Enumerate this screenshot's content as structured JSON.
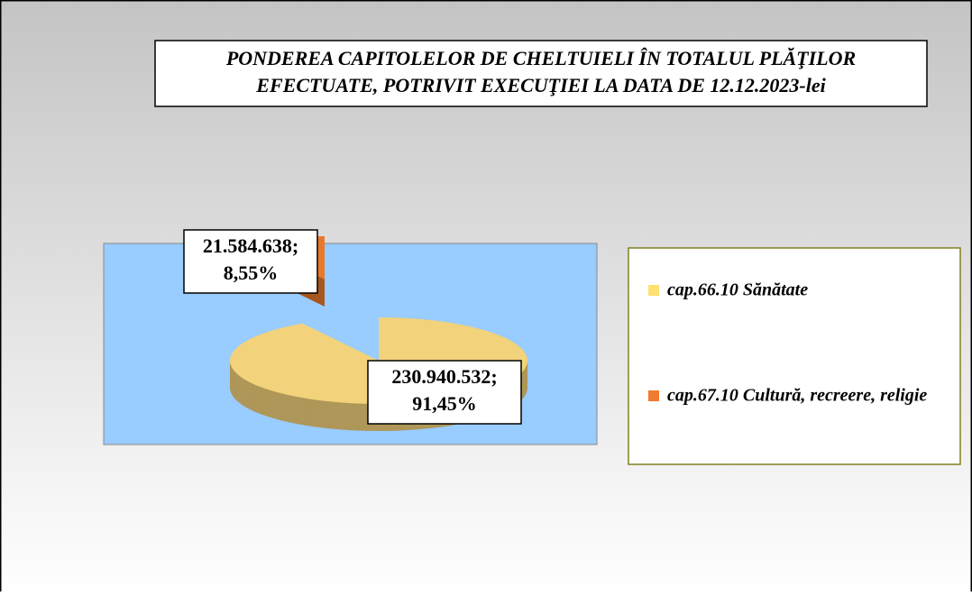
{
  "chart_data": {
    "type": "pie",
    "title": [
      "PONDEREA  CAPITOLELOR DE CHELTUIELI ÎN TOTALUL PLĂŢILOR",
      "EFECTUATE, POTRIVIT EXECUŢIEI  LA DATA DE 12.12.2023-lei"
    ],
    "categories": [
      "cap.66.10 Sănătate",
      "cap.67.10 Cultură, recreere, religie"
    ],
    "values": [
      230940532,
      21584638
    ],
    "value_labels": [
      "230.940.532;",
      "21.584.638;"
    ],
    "percent_values": [
      91.45,
      8.55
    ],
    "percent_labels": [
      "91,45%",
      "8,55%"
    ],
    "colors": [
      "#f2d27a",
      "#e8782e"
    ],
    "legend": "right"
  }
}
